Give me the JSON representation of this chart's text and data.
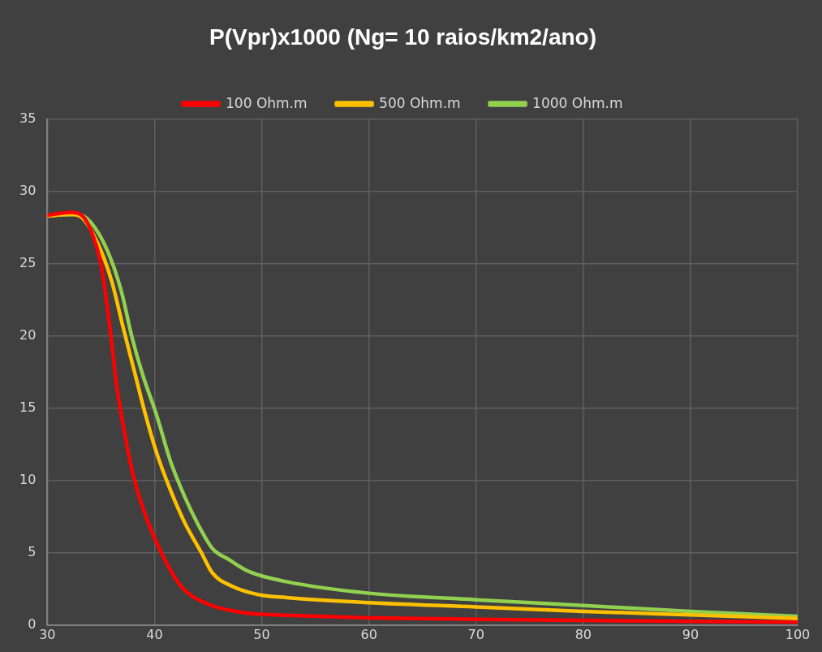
{
  "chart_data": {
    "type": "line",
    "title": "P(Vpr)x1000 (Ng= 10 raios/km2/ano)",
    "xlim": [
      30,
      100
    ],
    "xticks": [
      30,
      40,
      50,
      60,
      70,
      80,
      90,
      100
    ],
    "ylim": [
      0,
      35
    ],
    "yticks": [
      0,
      5,
      10,
      15,
      20,
      25,
      30,
      35
    ],
    "grid": true,
    "legend": "top",
    "marker": "none",
    "line_style": "solid",
    "series": [
      {
        "name": "100 Ohm.m",
        "color": "#ff0000",
        "x": [
          30,
          32.2,
          33.2,
          34.2,
          35,
          35.8,
          36.5,
          37.3,
          38.1,
          39.4,
          40.7,
          42.5,
          45,
          48.4,
          50,
          52.3,
          60,
          70,
          80,
          90,
          100
        ],
        "values": [
          28.35,
          28.55,
          28.35,
          27.05,
          25,
          20.8,
          16.4,
          12.9,
          10.1,
          7.1,
          4.9,
          2.66,
          1.45,
          0.85,
          0.75,
          0.68,
          0.5,
          0.4,
          0.32,
          0.26,
          0.2
        ]
      },
      {
        "name": "500 Ohm.m",
        "color": "#ffc000",
        "x": [
          30,
          32.2,
          33.2,
          34.7,
          36,
          37,
          38.1,
          39.1,
          40.2,
          41.5,
          42.8,
          44.3,
          45.4,
          47.2,
          49.7,
          52.3,
          60,
          70,
          80,
          90,
          100
        ],
        "values": [
          28.3,
          28.4,
          28.2,
          26.4,
          23.8,
          20.8,
          17.6,
          14.7,
          11.9,
          9.3,
          7.1,
          5.1,
          3.6,
          2.7,
          2.1,
          1.9,
          1.55,
          1.25,
          0.95,
          0.7,
          0.45
        ]
      },
      {
        "name": "1000 Ohm.m",
        "color": "#92d050",
        "x": [
          30,
          32.8,
          34,
          35.6,
          36.9,
          37.9,
          38.9,
          40.2,
          41.5,
          42.8,
          44.1,
          45.4,
          47,
          48.8,
          52.3,
          60,
          70,
          80,
          90,
          100
        ],
        "values": [
          28.35,
          28.4,
          27.9,
          25.9,
          23.1,
          19.9,
          17.3,
          14.5,
          11.3,
          8.9,
          6.9,
          5.3,
          4.5,
          3.7,
          3.0,
          2.2,
          1.75,
          1.35,
          0.95,
          0.6
        ]
      }
    ]
  }
}
